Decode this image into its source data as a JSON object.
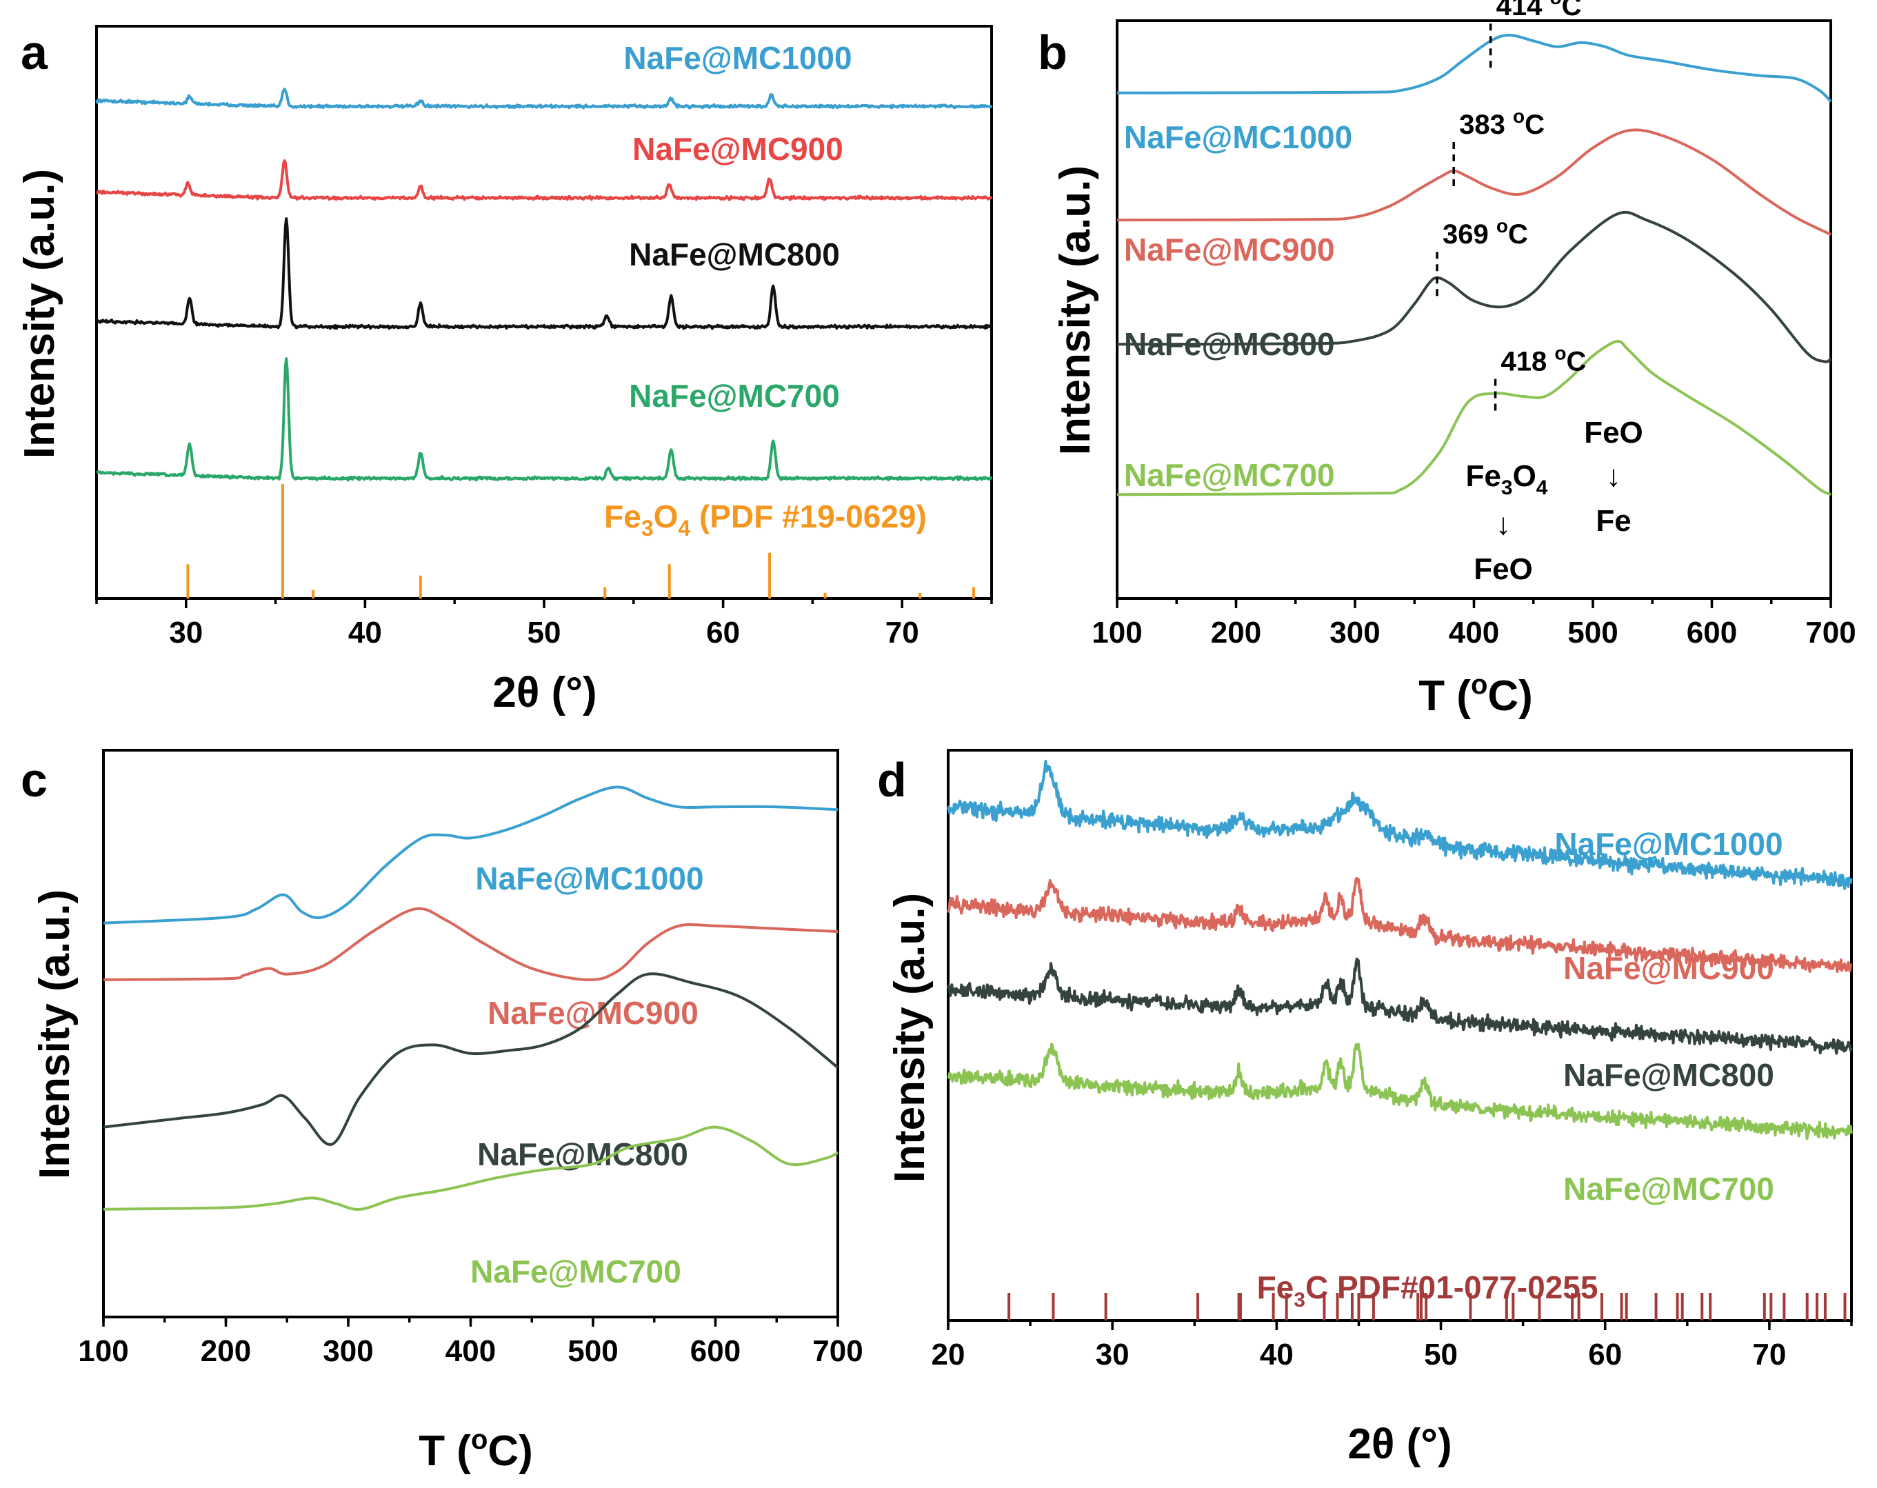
{
  "chart_data": [
    {
      "panel": "a",
      "type": "line",
      "xlabel": "2θ (°)",
      "ylabel": "Intensity (a.u.)",
      "xlim": [
        25,
        75
      ],
      "xticks": [
        30,
        40,
        50,
        60,
        70
      ],
      "series": [
        {
          "name": "NaFe@MC1000",
          "color": "#3a9fd0",
          "baseline": 0.86,
          "peaks": [
            [
              30.2,
              0.012
            ],
            [
              35.5,
              0.03
            ],
            [
              43.1,
              0.01
            ],
            [
              57.1,
              0.014
            ],
            [
              62.7,
              0.02
            ]
          ]
        },
        {
          "name": "NaFe@MC900",
          "color": "#e84545",
          "baseline": 0.7,
          "peaks": [
            [
              30.1,
              0.02
            ],
            [
              35.5,
              0.065
            ],
            [
              43.1,
              0.02
            ],
            [
              57.0,
              0.024
            ],
            [
              62.6,
              0.034
            ]
          ]
        },
        {
          "name": "NaFe@MC800",
          "color": "#111111",
          "baseline": 0.475,
          "peaks": [
            [
              30.2,
              0.045
            ],
            [
              35.6,
              0.19
            ],
            [
              43.1,
              0.04
            ],
            [
              53.5,
              0.02
            ],
            [
              57.1,
              0.054
            ],
            [
              62.8,
              0.07
            ]
          ]
        },
        {
          "name": "NaFe@MC700",
          "color": "#2aa86a",
          "baseline": 0.21,
          "peaks": [
            [
              30.2,
              0.055
            ],
            [
              35.6,
              0.21
            ],
            [
              43.1,
              0.045
            ],
            [
              53.6,
              0.018
            ],
            [
              57.1,
              0.05
            ],
            [
              62.8,
              0.065
            ]
          ]
        }
      ],
      "reference": {
        "label_main": "Fe",
        "label_sub": "3",
        "label_o": "O",
        "label_sub2": "4",
        "label_pdf": " (PDF #19-0629)",
        "color": "#f5961e",
        "positions": [
          30.1,
          35.4,
          37.1,
          43.1,
          53.4,
          57.0,
          62.6,
          65.7,
          71.0,
          74.0
        ],
        "heights": [
          0.06,
          0.2,
          0.015,
          0.04,
          0.02,
          0.06,
          0.08,
          0.01,
          0.01,
          0.02
        ]
      }
    },
    {
      "panel": "b",
      "type": "line",
      "xlabel_pre": "T (",
      "xlabel_sup": "o",
      "xlabel_post": "C)",
      "ylabel": "Intensity (a.u.)",
      "xlim": [
        100,
        700
      ],
      "xticks": [
        100,
        200,
        300,
        400,
        500,
        600,
        700
      ],
      "series": [
        {
          "name": "NaFe@MC1000",
          "color": "#3aa0cf",
          "x": [
            100,
            300,
            340,
            370,
            390,
            414,
            430,
            450,
            470,
            490,
            510,
            530,
            560,
            600,
            640,
            670,
            690,
            700
          ],
          "y": [
            0.875,
            0.876,
            0.88,
            0.9,
            0.93,
            0.965,
            0.975,
            0.965,
            0.955,
            0.962,
            0.955,
            0.94,
            0.93,
            0.915,
            0.905,
            0.9,
            0.88,
            0.86
          ]
        },
        {
          "name": "NaFe@MC900",
          "color": "#d9675c",
          "x": [
            100,
            260,
            300,
            330,
            355,
            372,
            383,
            395,
            415,
            440,
            470,
            500,
            530,
            560,
            600,
            640,
            670,
            700
          ],
          "y": [
            0.655,
            0.656,
            0.66,
            0.68,
            0.71,
            0.73,
            0.74,
            0.73,
            0.71,
            0.7,
            0.73,
            0.78,
            0.81,
            0.8,
            0.76,
            0.7,
            0.66,
            0.63
          ]
        },
        {
          "name": "NaFe@MC800",
          "color": "#34433f",
          "x": [
            100,
            260,
            300,
            330,
            350,
            362,
            369,
            380,
            400,
            425,
            450,
            480,
            520,
            545,
            580,
            620,
            650,
            680,
            695,
            700
          ],
          "y": [
            0.44,
            0.441,
            0.446,
            0.465,
            0.51,
            0.545,
            0.555,
            0.545,
            0.515,
            0.505,
            0.53,
            0.6,
            0.665,
            0.655,
            0.62,
            0.56,
            0.5,
            0.425,
            0.41,
            0.415
          ]
        },
        {
          "name": "NaFe@MC700",
          "color": "#8cc454",
          "x": [
            100,
            300,
            340,
            370,
            395,
            418,
            440,
            460,
            480,
            500,
            520,
            530,
            550,
            580,
            620,
            660,
            690,
            700
          ],
          "y": [
            0.18,
            0.182,
            0.19,
            0.25,
            0.34,
            0.355,
            0.35,
            0.35,
            0.38,
            0.42,
            0.445,
            0.43,
            0.39,
            0.35,
            0.3,
            0.24,
            0.19,
            0.18
          ]
        }
      ],
      "annotations": [
        {
          "text": "414",
          "unit_sup": "o",
          "unit": "C",
          "x": 414,
          "y_top": 0.995,
          "y_bot": 0.915
        },
        {
          "text": "383",
          "unit_sup": "o",
          "unit": "C",
          "x": 383,
          "y_top": 0.79,
          "y_bot": 0.71
        },
        {
          "text": "369",
          "unit_sup": "o",
          "unit": "C",
          "x": 369,
          "y_top": 0.6,
          "y_bot": 0.52
        },
        {
          "text": "418",
          "unit_sup": "o",
          "unit": "C",
          "x": 418,
          "y_top": 0.38,
          "y_bot": 0.32
        }
      ],
      "reactions": {
        "left_from_a": "Fe",
        "left_from_sub": "3",
        "left_from_b": "O",
        "left_from_sub2": "4",
        "left_to": "FeO",
        "right_from": "FeO",
        "right_to": "Fe",
        "arrow": "↓"
      }
    },
    {
      "panel": "c",
      "type": "line",
      "xlabel_pre": "T (",
      "xlabel_sup": "o",
      "xlabel_post": "C)",
      "ylabel": "Intensity (a.u.)",
      "xlim": [
        100,
        700
      ],
      "xticks": [
        100,
        200,
        300,
        400,
        500,
        600,
        700
      ],
      "series": [
        {
          "name": "NaFe@MC1000",
          "color": "#3aa0cf",
          "x": [
            100,
            200,
            225,
            247,
            262,
            278,
            300,
            330,
            360,
            380,
            400,
            430,
            460,
            490,
            520,
            545,
            570,
            600,
            650,
            700
          ],
          "y": [
            0.695,
            0.705,
            0.72,
            0.745,
            0.715,
            0.705,
            0.73,
            0.795,
            0.845,
            0.85,
            0.845,
            0.86,
            0.885,
            0.915,
            0.935,
            0.915,
            0.9,
            0.9,
            0.9,
            0.895
          ]
        },
        {
          "name": "NaFe@MC900",
          "color": "#d9675c",
          "x": [
            100,
            200,
            215,
            235,
            250,
            280,
            320,
            355,
            380,
            410,
            450,
            495,
            520,
            545,
            570,
            600,
            650,
            700
          ],
          "y": [
            0.595,
            0.597,
            0.603,
            0.615,
            0.605,
            0.62,
            0.68,
            0.72,
            0.7,
            0.66,
            0.615,
            0.595,
            0.61,
            0.66,
            0.69,
            0.69,
            0.685,
            0.68
          ]
        },
        {
          "name": "NaFe@MC800",
          "color": "#34433f",
          "x": [
            100,
            160,
            200,
            230,
            247,
            265,
            287,
            310,
            340,
            370,
            400,
            430,
            460,
            490,
            520,
            545,
            580,
            620,
            660,
            700
          ],
          "y": [
            0.335,
            0.35,
            0.36,
            0.375,
            0.39,
            0.35,
            0.305,
            0.39,
            0.465,
            0.48,
            0.465,
            0.47,
            0.48,
            0.51,
            0.57,
            0.605,
            0.59,
            0.565,
            0.51,
            0.44
          ]
        },
        {
          "name": "NaFe@MC700",
          "color": "#8cc454",
          "x": [
            100,
            200,
            240,
            270,
            290,
            310,
            340,
            380,
            420,
            460,
            500,
            530,
            570,
            600,
            630,
            660,
            690,
            700
          ],
          "y": [
            0.19,
            0.193,
            0.2,
            0.21,
            0.2,
            0.19,
            0.21,
            0.225,
            0.245,
            0.26,
            0.27,
            0.3,
            0.315,
            0.335,
            0.31,
            0.27,
            0.28,
            0.29
          ]
        }
      ]
    },
    {
      "panel": "d",
      "type": "line",
      "xlabel": "2θ (°)",
      "ylabel": "Intensity (a.u.)",
      "xlim": [
        20,
        75
      ],
      "xticks": [
        20,
        30,
        40,
        50,
        60,
        70
      ],
      "series": [
        {
          "name": "NaFe@MC1000",
          "color": "#3aa0cf",
          "baseline": 0.9,
          "slope": 0.13,
          "peaks": [
            [
              26.1,
              0.085,
              0.6
            ],
            [
              37.8,
              0.02,
              0.7
            ],
            [
              44.9,
              0.05,
              1.3
            ],
            [
              49.0,
              0.015,
              0.7
            ]
          ],
          "noise": 0.02
        },
        {
          "name": "NaFe@MC900",
          "color": "#d9675c",
          "baseline": 0.73,
          "slope": 0.11,
          "peaks": [
            [
              26.3,
              0.045,
              0.5
            ],
            [
              37.7,
              0.03,
              0.3
            ],
            [
              43.0,
              0.04,
              0.25
            ],
            [
              43.9,
              0.04,
              0.25
            ],
            [
              44.9,
              0.075,
              0.3
            ],
            [
              49.0,
              0.03,
              0.4
            ]
          ],
          "noise": 0.018
        },
        {
          "name": "NaFe@MC800",
          "color": "#34433f",
          "baseline": 0.58,
          "slope": 0.1,
          "peaks": [
            [
              26.3,
              0.045,
              0.5
            ],
            [
              37.7,
              0.03,
              0.3
            ],
            [
              43.0,
              0.04,
              0.25
            ],
            [
              43.9,
              0.04,
              0.25
            ],
            [
              44.9,
              0.075,
              0.3
            ],
            [
              49.0,
              0.03,
              0.4
            ]
          ],
          "noise": 0.018
        },
        {
          "name": "NaFe@MC700",
          "color": "#8cc454",
          "baseline": 0.43,
          "slope": 0.1,
          "peaks": [
            [
              26.3,
              0.06,
              0.5
            ],
            [
              37.7,
              0.035,
              0.3
            ],
            [
              43.0,
              0.045,
              0.25
            ],
            [
              43.9,
              0.045,
              0.25
            ],
            [
              44.9,
              0.08,
              0.3
            ],
            [
              49.0,
              0.035,
              0.4
            ]
          ],
          "noise": 0.018
        }
      ],
      "reference": {
        "label_main": "Fe",
        "label_sub": "3",
        "label_rest": "C PDF#01-077-0255",
        "color": "#a33a3a",
        "positions": [
          23.7,
          26.4,
          29.6,
          35.2,
          37.7,
          37.8,
          39.8,
          40.6,
          42.9,
          43.7,
          44.6,
          45.0,
          45.9,
          48.6,
          48.8,
          49.1,
          51.8,
          54.0,
          54.4,
          56.0,
          58.0,
          58.4,
          59.8,
          61.0,
          61.3,
          63.1,
          64.4,
          64.7,
          65.9,
          66.4,
          69.7,
          70.1,
          70.9,
          72.3,
          72.9,
          73.4,
          74.6
        ]
      }
    }
  ],
  "panels": {
    "a": "a",
    "b": "b",
    "c": "c",
    "d": "d"
  }
}
